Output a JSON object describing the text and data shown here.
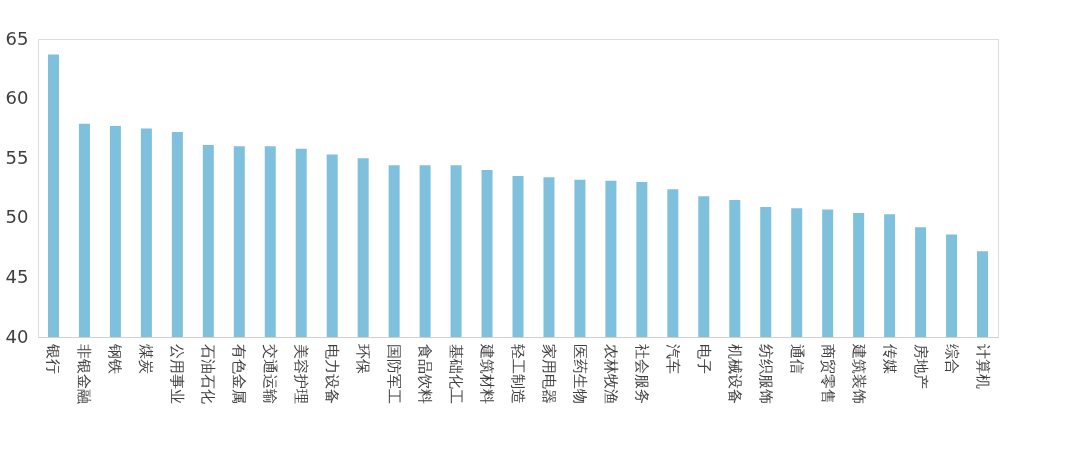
{
  "chart_data": {
    "type": "bar",
    "categories": [
      "银行",
      "非银金融",
      "钢铁",
      "煤炭",
      "公用事业",
      "石油石化",
      "有色金属",
      "交通运输",
      "美容护理",
      "电力设备",
      "环保",
      "国防军工",
      "食品饮料",
      "基础化工",
      "建筑材料",
      "轻工制造",
      "家用电器",
      "医药生物",
      "农林牧渔",
      "社会服务",
      "汽车",
      "电子",
      "机械设备",
      "纺织服饰",
      "通信",
      "商贸零售",
      "建筑装饰",
      "传媒",
      "房地产",
      "综合",
      "计算机"
    ],
    "values": [
      63.7,
      57.9,
      57.7,
      57.5,
      57.2,
      56.1,
      56.0,
      56.0,
      55.8,
      55.3,
      55.0,
      54.4,
      54.4,
      54.4,
      54.0,
      53.5,
      53.4,
      53.2,
      53.1,
      53.0,
      52.4,
      51.8,
      51.5,
      50.9,
      50.8,
      50.7,
      50.4,
      50.3,
      49.2,
      48.6,
      47.2
    ],
    "color": "#7fc0dc",
    "ylim": [
      40,
      65
    ],
    "yticks": [
      40,
      45,
      50,
      55,
      60,
      65
    ],
    "grid": false
  }
}
